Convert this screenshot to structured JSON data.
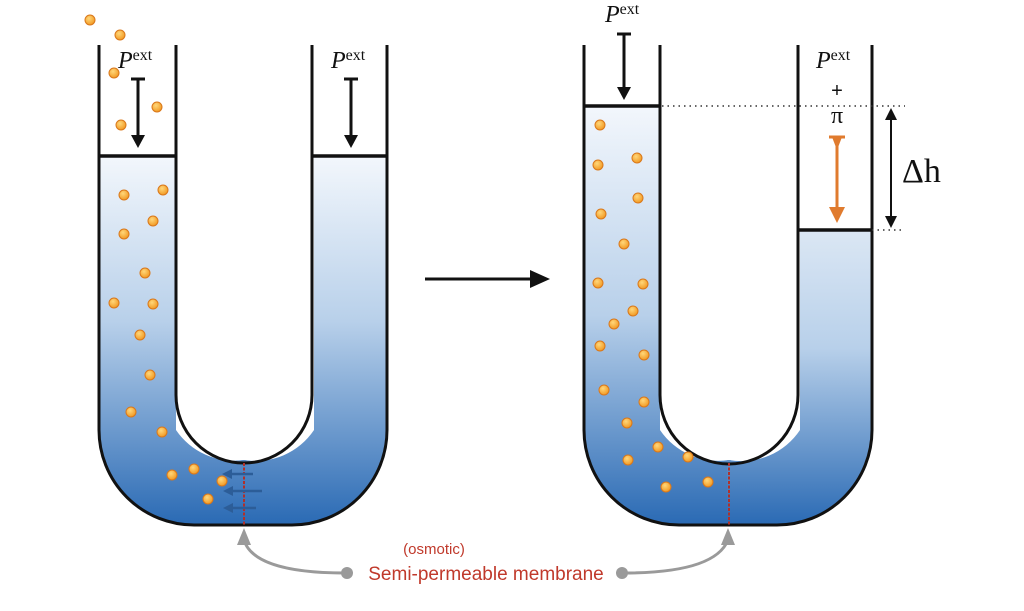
{
  "labels": {
    "p_symbol": "P",
    "p_sub": "ext",
    "plus": "+",
    "pi": "π",
    "delta_h": "Δh",
    "osmotic": "(osmotic)",
    "membrane": "Semi-permeable membrane"
  },
  "colors": {
    "liquid_top": "#f2f6fb",
    "liquid_bottom": "#2a6ab4",
    "particle": "#f4a630",
    "particle_edge": "#d9771a",
    "membrane": "#b0302a",
    "arrow_flow": "#2c5d98",
    "pressure_arrow": "#111111",
    "osmotic_arrow": "#e07b2e",
    "pointer_gray": "#9a9a9a",
    "membrane_text": "#c0392b"
  },
  "icons": {
    "process_arrow": "right-arrow",
    "pressure": "down-arrow"
  }
}
